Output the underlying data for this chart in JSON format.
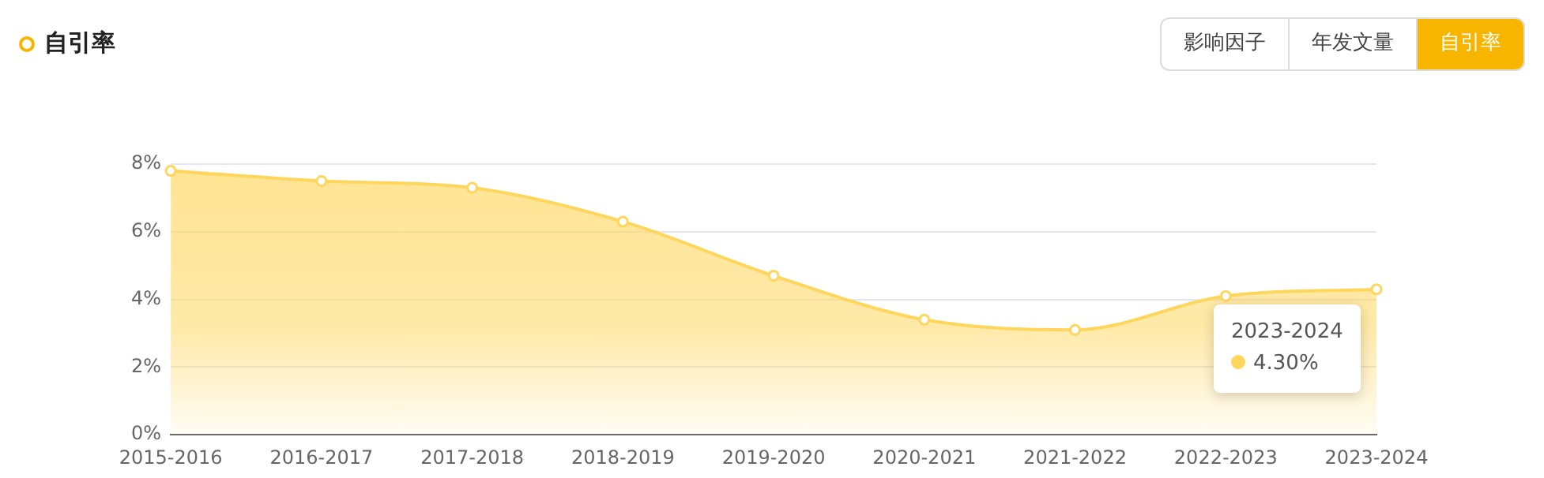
{
  "chart_data": {
    "type": "area",
    "title": "自引率",
    "categories": [
      "2015-2016",
      "2016-2017",
      "2017-2018",
      "2018-2019",
      "2019-2020",
      "2020-2021",
      "2021-2022",
      "2022-2023",
      "2023-2024"
    ],
    "series": [
      {
        "color": "#ffd65c",
        "values": [
          7.8,
          7.5,
          7.3,
          6.3,
          4.7,
          3.4,
          3.1,
          4.1,
          4.3
        ]
      }
    ],
    "ylim": [
      0,
      8
    ],
    "yticks": [
      {
        "value": 0,
        "label": "0%"
      },
      {
        "value": 2,
        "label": "2%"
      },
      {
        "value": 4,
        "label": "4%"
      },
      {
        "value": 6,
        "label": "6%"
      },
      {
        "value": 8,
        "label": "8%"
      }
    ],
    "grid": "y",
    "legend": false,
    "marker": "circle",
    "line_style": "solid",
    "annotations": [
      "影响因子",
      "年发文量",
      "自引率",
      {
        "text": "2023-2024\n4.30%",
        "x": "2023-2024",
        "y": 4.3
      }
    ]
  }
}
